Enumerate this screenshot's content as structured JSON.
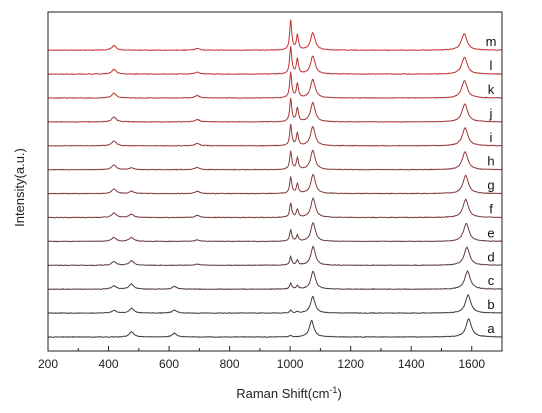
{
  "chart_data": {
    "type": "line",
    "xlabel": "Raman Shift(cm",
    "xlabel_sup": "-1",
    "xlabel_tail": ")",
    "ylabel": "Intensity(a.u.)",
    "xlim": [
      200,
      1700
    ],
    "x_ticks": [
      200,
      400,
      600,
      800,
      1000,
      1200,
      1400,
      1600
    ],
    "grid": false,
    "stacked": true,
    "series": [
      {
        "name": "a",
        "color": "#3a3a3a",
        "peaks": [
          [
            476,
            0.17
          ],
          [
            618,
            0.12
          ],
          [
            1002,
            0.05
          ],
          [
            1071,
            0.55
          ],
          [
            1590,
            0.6
          ]
        ]
      },
      {
        "name": "b",
        "color": "#463b3b",
        "peaks": [
          [
            418,
            0.09
          ],
          [
            476,
            0.16
          ],
          [
            618,
            0.1
          ],
          [
            1002,
            0.09
          ],
          [
            1024,
            0.05
          ],
          [
            1075,
            0.55
          ],
          [
            1588,
            0.6
          ]
        ]
      },
      {
        "name": "c",
        "color": "#523c3c",
        "peaks": [
          [
            418,
            0.11
          ],
          [
            476,
            0.17
          ],
          [
            618,
            0.09
          ],
          [
            1002,
            0.2
          ],
          [
            1024,
            0.12
          ],
          [
            1076,
            0.6
          ],
          [
            1586,
            0.6
          ]
        ]
      },
      {
        "name": "d",
        "color": "#5e3c3c",
        "peaks": [
          [
            418,
            0.12
          ],
          [
            476,
            0.15
          ],
          [
            693,
            0.04
          ],
          [
            1002,
            0.28
          ],
          [
            1024,
            0.16
          ],
          [
            1076,
            0.62
          ],
          [
            1584,
            0.6
          ]
        ]
      },
      {
        "name": "e",
        "color": "#6a3d3d",
        "peaks": [
          [
            418,
            0.13
          ],
          [
            476,
            0.13
          ],
          [
            693,
            0.05
          ],
          [
            1002,
            0.38
          ],
          [
            1024,
            0.2
          ],
          [
            1076,
            0.62
          ],
          [
            1582,
            0.6
          ]
        ]
      },
      {
        "name": "f",
        "color": "#763c3c",
        "peaks": [
          [
            418,
            0.15
          ],
          [
            476,
            0.11
          ],
          [
            693,
            0.07
          ],
          [
            1002,
            0.48
          ],
          [
            1024,
            0.26
          ],
          [
            1076,
            0.64
          ],
          [
            1580,
            0.6
          ]
        ]
      },
      {
        "name": "g",
        "color": "#823b3b",
        "peaks": [
          [
            418,
            0.15
          ],
          [
            476,
            0.08
          ],
          [
            693,
            0.08
          ],
          [
            1002,
            0.55
          ],
          [
            1024,
            0.32
          ],
          [
            1076,
            0.64
          ],
          [
            1580,
            0.6
          ]
        ]
      },
      {
        "name": "h",
        "color": "#8e3a3a",
        "peaks": [
          [
            418,
            0.16
          ],
          [
            476,
            0.06
          ],
          [
            693,
            0.08
          ],
          [
            1002,
            0.62
          ],
          [
            1024,
            0.38
          ],
          [
            1075,
            0.64
          ],
          [
            1578,
            0.6
          ]
        ]
      },
      {
        "name": "i",
        "color": "#9a3838",
        "peaks": [
          [
            418,
            0.16
          ],
          [
            693,
            0.08
          ],
          [
            1002,
            0.7
          ],
          [
            1024,
            0.42
          ],
          [
            1075,
            0.64
          ],
          [
            1578,
            0.6
          ]
        ]
      },
      {
        "name": "j",
        "color": "#a63636",
        "peaks": [
          [
            418,
            0.16
          ],
          [
            693,
            0.08
          ],
          [
            1002,
            0.78
          ],
          [
            1024,
            0.46
          ],
          [
            1075,
            0.64
          ],
          [
            1577,
            0.6
          ]
        ]
      },
      {
        "name": "k",
        "color": "#b23434",
        "peaks": [
          [
            418,
            0.16
          ],
          [
            693,
            0.08
          ],
          [
            1002,
            0.85
          ],
          [
            1024,
            0.48
          ],
          [
            1075,
            0.62
          ],
          [
            1576,
            0.58
          ]
        ]
      },
      {
        "name": "l",
        "color": "#be3232",
        "peaks": [
          [
            418,
            0.16
          ],
          [
            693,
            0.07
          ],
          [
            1002,
            0.92
          ],
          [
            1024,
            0.5
          ],
          [
            1075,
            0.6
          ],
          [
            1576,
            0.56
          ]
        ]
      },
      {
        "name": "m",
        "color": "#ca3030",
        "peaks": [
          [
            418,
            0.15
          ],
          [
            693,
            0.06
          ],
          [
            1002,
            1.0
          ],
          [
            1024,
            0.5
          ],
          [
            1075,
            0.58
          ],
          [
            1575,
            0.55
          ]
        ]
      }
    ]
  }
}
